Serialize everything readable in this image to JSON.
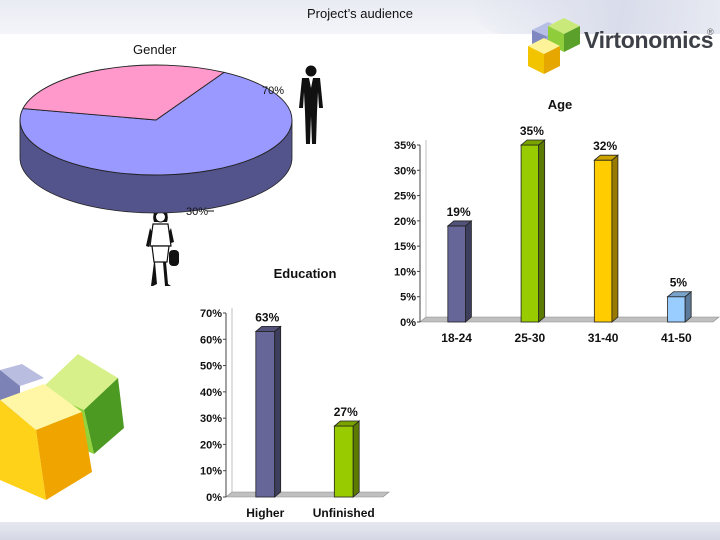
{
  "slide": {
    "title": "Project’s audience"
  },
  "brand": {
    "name": "Virtonomics",
    "reg_mark": "®"
  },
  "icons": {
    "logo_cube": "cube-cluster-icon",
    "man": "man-silhouette-icon",
    "woman": "woman-silhouette-icon",
    "decor": "decorative-cubes-icon"
  },
  "colors": {
    "male": "#9999ff",
    "female": "#ff99cc",
    "bar_blue": "#666699",
    "bar_green": "#99cc00",
    "bar_yellow": "#ffcc00",
    "bar_lightblue": "#99ccff"
  },
  "chart_data": [
    {
      "type": "pie",
      "title": "Gender",
      "slices": [
        {
          "value": 70,
          "label": "70%",
          "color": "#9999ff"
        },
        {
          "value": 30,
          "label": "30%",
          "color": "#ff99cc"
        }
      ]
    },
    {
      "type": "bar",
      "title": "Age",
      "categories": [
        "18-24",
        "25-30",
        "31-40",
        "41-50"
      ],
      "values": [
        19,
        35,
        32,
        5
      ],
      "value_labels": [
        "19%",
        "35%",
        "32%",
        "5%"
      ],
      "colors": [
        "#666699",
        "#99cc00",
        "#ffcc00",
        "#99ccff"
      ],
      "yticks": [
        "0%",
        "5%",
        "10%",
        "15%",
        "20%",
        "25%",
        "30%",
        "35%"
      ],
      "ylim": [
        0,
        35
      ]
    },
    {
      "type": "bar",
      "title": "Education",
      "categories": [
        "Higher",
        "Unfinished"
      ],
      "values": [
        63,
        27
      ],
      "value_labels": [
        "63%",
        "27%"
      ],
      "colors": [
        "#666699",
        "#99cc00"
      ],
      "yticks": [
        "0%",
        "10%",
        "20%",
        "30%",
        "40%",
        "50%",
        "60%",
        "70%"
      ],
      "ylim": [
        0,
        70
      ]
    }
  ]
}
